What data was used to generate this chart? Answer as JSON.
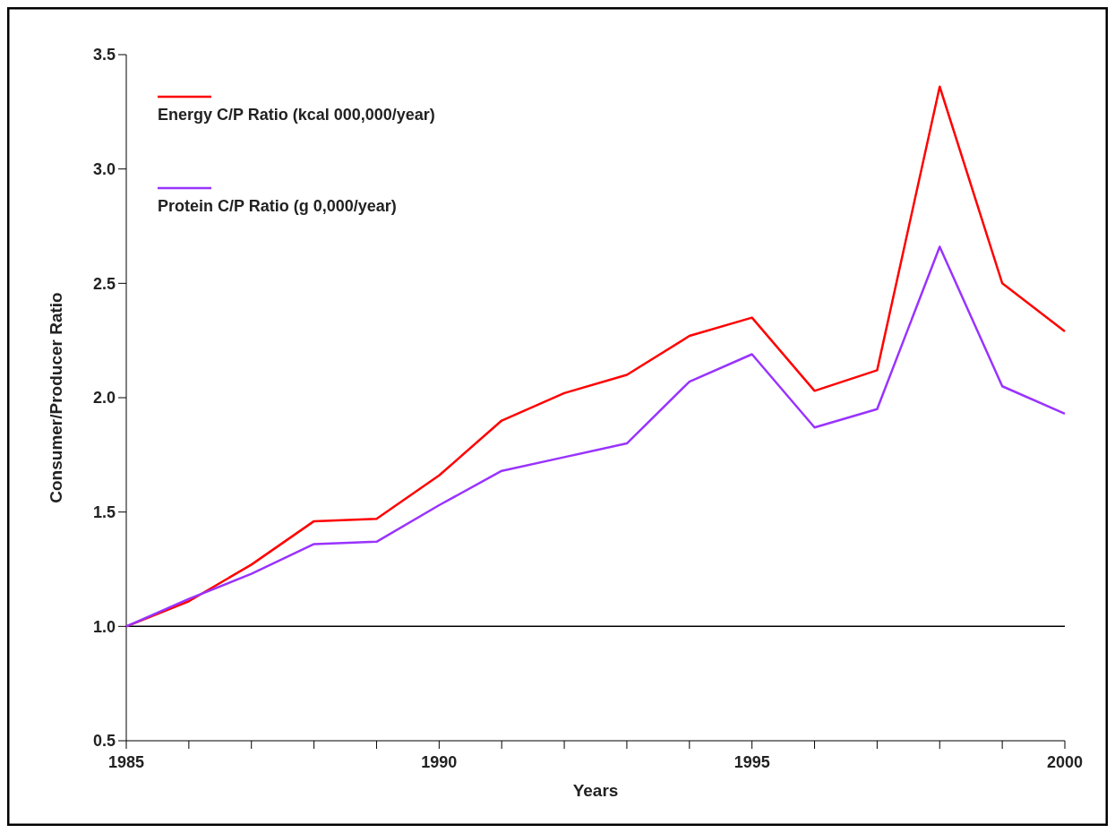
{
  "chart_data": {
    "type": "line",
    "xlabel": "Years",
    "ylabel": "Consumer/Producer Ratio",
    "x": [
      1985,
      1986,
      1987,
      1988,
      1989,
      1990,
      1991,
      1992,
      1993,
      1994,
      1995,
      1996,
      1997,
      1998,
      1999,
      2000
    ],
    "series": [
      {
        "name": "Energy C/P Ratio (kcal 000,000/year)",
        "color": "#ff0000",
        "values": [
          1.0,
          1.11,
          1.27,
          1.46,
          1.47,
          1.66,
          1.9,
          2.02,
          2.1,
          2.27,
          2.35,
          2.03,
          2.12,
          3.36,
          2.5,
          2.29
        ]
      },
      {
        "name": "Protein C/P Ratio (g 0,000/year)",
        "color": "#9933ff",
        "values": [
          1.0,
          1.12,
          1.23,
          1.36,
          1.37,
          1.53,
          1.68,
          1.74,
          1.8,
          2.07,
          2.19,
          1.87,
          1.95,
          2.66,
          2.05,
          1.93
        ]
      }
    ],
    "xlim": [
      1985,
      2000
    ],
    "xticks": [
      1985,
      {
        "value": 1986,
        "label": null
      },
      {
        "value": 1987,
        "label": null
      },
      {
        "value": 1988,
        "label": null
      },
      {
        "value": 1989,
        "label": null
      },
      1990,
      {
        "value": 1991,
        "label": null
      },
      {
        "value": 1992,
        "label": null
      },
      {
        "value": 1993,
        "label": null
      },
      {
        "value": 1994,
        "label": null
      },
      1995,
      {
        "value": 1996,
        "label": null
      },
      {
        "value": 1997,
        "label": null
      },
      {
        "value": 1998,
        "label": null
      },
      {
        "value": 1999,
        "label": null
      },
      2000
    ],
    "ylim": [
      0.5,
      3.5
    ],
    "yticks": [
      {
        "value": 0.5,
        "label": "0.5"
      },
      {
        "value": 1,
        "label": "1.0"
      },
      {
        "value": 1.5,
        "label": "1.5"
      },
      {
        "value": 2,
        "label": "2.0"
      },
      {
        "value": 2.5,
        "label": "2.5"
      },
      {
        "value": 3,
        "label": "3.0"
      },
      {
        "value": 3.5,
        "label": "3.5"
      }
    ],
    "ref_lines": [
      {
        "axis": "y",
        "value": 1,
        "label": null,
        "color": "#000000"
      }
    ],
    "legend": "top left",
    "grid": false,
    "marker": "none",
    "line_style": "solid"
  }
}
